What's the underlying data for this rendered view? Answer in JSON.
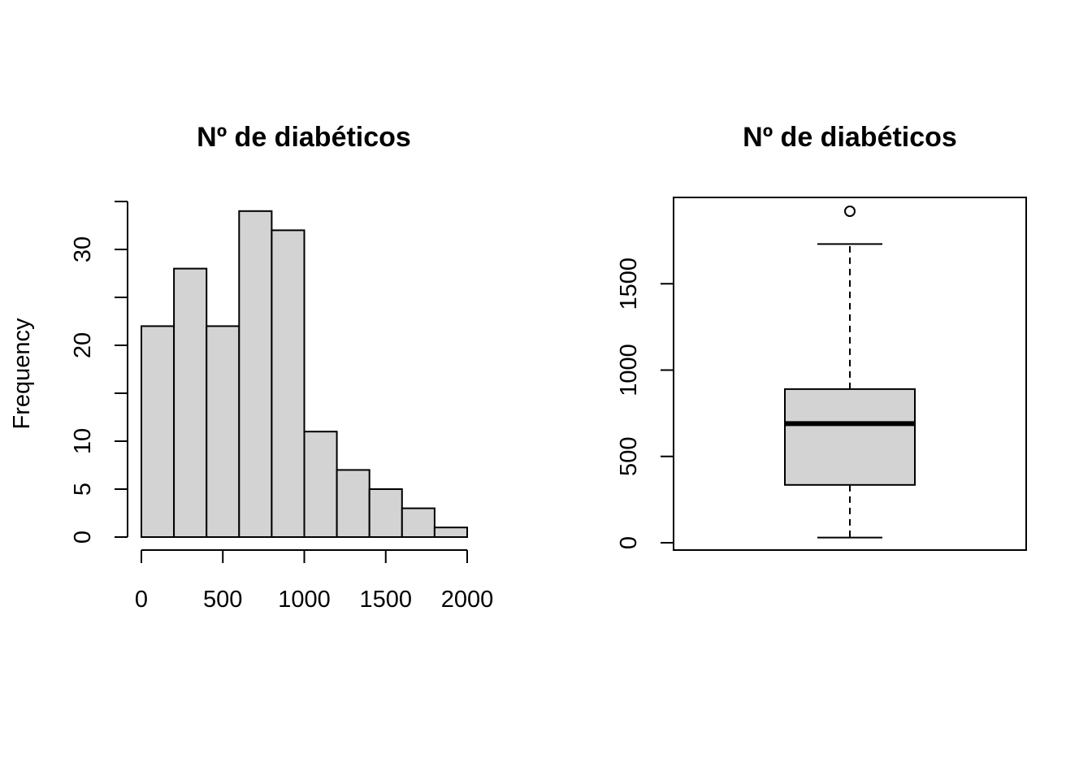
{
  "colors": {
    "fill": "#d3d3d3",
    "stroke": "#000000",
    "background": "#ffffff"
  },
  "chart_data": [
    {
      "type": "bar",
      "subtype": "histogram",
      "title": "Nº de diabéticos",
      "xlabel": "",
      "ylabel": "Frequency",
      "bins": [
        {
          "from": 0,
          "to": 200,
          "count": 22
        },
        {
          "from": 200,
          "to": 400,
          "count": 28
        },
        {
          "from": 400,
          "to": 600,
          "count": 22
        },
        {
          "from": 600,
          "to": 800,
          "count": 34
        },
        {
          "from": 800,
          "to": 1000,
          "count": 32
        },
        {
          "from": 1000,
          "to": 1200,
          "count": 11
        },
        {
          "from": 1200,
          "to": 1400,
          "count": 7
        },
        {
          "from": 1400,
          "to": 1600,
          "count": 5
        },
        {
          "from": 1600,
          "to": 1800,
          "count": 3
        },
        {
          "from": 1800,
          "to": 2000,
          "count": 1
        }
      ],
      "xticks": [
        0,
        500,
        1000,
        1500,
        2000
      ],
      "yticks": [
        0,
        5,
        10,
        15,
        20,
        25,
        30,
        35
      ],
      "ytick_labels": [
        "0",
        "5",
        "10",
        "",
        "20",
        "",
        "30",
        ""
      ],
      "xlim": [
        0,
        2000
      ],
      "ylim": [
        0,
        35
      ],
      "grid": false
    },
    {
      "type": "boxplot",
      "title": "Nº de diabéticos",
      "xlabel": "",
      "ylabel": "",
      "stats": {
        "lower_whisker": 30,
        "q1": 335,
        "median": 690,
        "q3": 890,
        "upper_whisker": 1730
      },
      "outliers": [
        1920
      ],
      "yticks": [
        0,
        500,
        1000,
        1500
      ],
      "ylim": [
        -40,
        2000
      ],
      "grid": false
    }
  ]
}
